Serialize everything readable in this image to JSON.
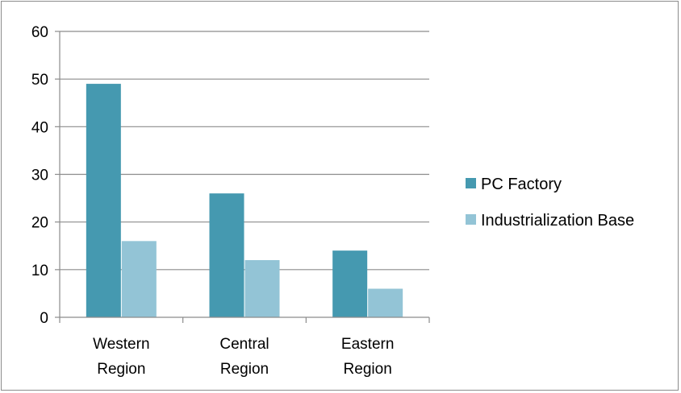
{
  "chart_data": {
    "type": "bar",
    "categories": [
      "Western Region",
      "Central Region",
      "Eastern Region"
    ],
    "series": [
      {
        "name": "PC Factory",
        "values": [
          49,
          26,
          14
        ],
        "color": "#4599b0"
      },
      {
        "name": "Industrialization Base",
        "values": [
          16,
          12,
          6
        ],
        "color": "#93c4d6"
      }
    ],
    "ylim": [
      0,
      60
    ],
    "yticks": [
      0,
      10,
      20,
      30,
      40,
      50,
      60
    ],
    "grid": true,
    "legend_position": "right"
  }
}
